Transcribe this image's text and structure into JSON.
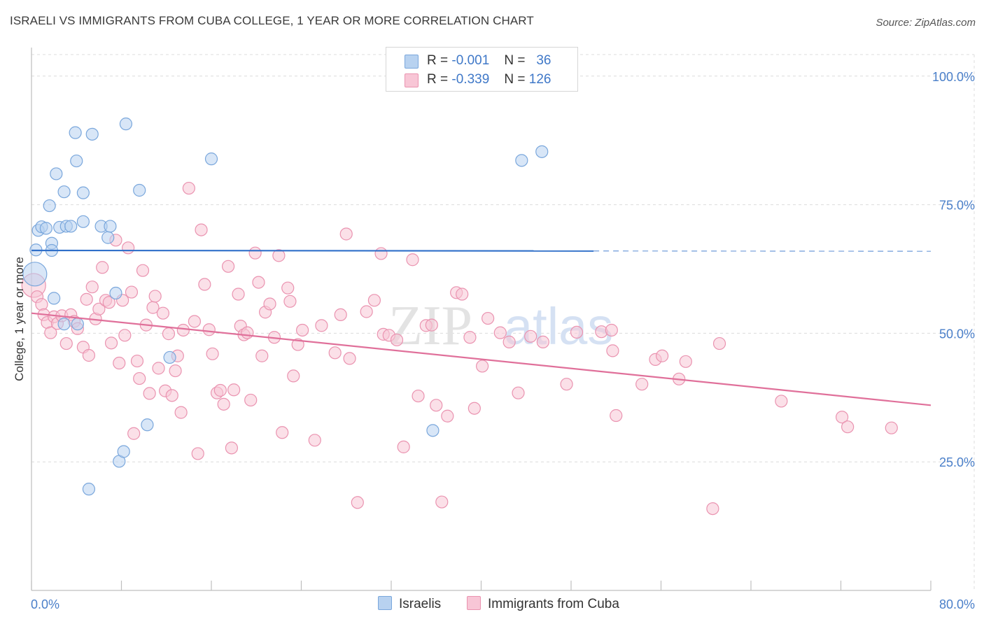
{
  "title": "ISRAELI VS IMMIGRANTS FROM CUBA COLLEGE, 1 YEAR OR MORE CORRELATION CHART",
  "source": "Source: ZipAtlas.com",
  "watermark": {
    "zip": "ZIP",
    "atlas": "atlas"
  },
  "legend": {
    "r_label": "R =",
    "n_label": "N =",
    "rows": [
      {
        "r": "-0.001",
        "n": "36",
        "series": "Israelis"
      },
      {
        "r": "-0.339",
        "n": "126",
        "series": "Immigrants from Cuba"
      }
    ]
  },
  "bottom_legend": [
    "Israelis",
    "Immigrants from Cuba"
  ],
  "colors": {
    "blue_fill": "#b8d2f0",
    "blue_stroke": "#7aa7dc",
    "blue_line": "#2f6fc9",
    "pink_fill": "#f8c6d6",
    "pink_stroke": "#ea93b0",
    "pink_line": "#e0709a",
    "axis_text": "#4a7fc9",
    "grid": "#dcdcdc"
  },
  "chart_data": {
    "type": "scatter",
    "xlabel": "",
    "ylabel": "College, 1 year or more",
    "xlim": [
      0,
      80
    ],
    "ylim": [
      0,
      105
    ],
    "x_tick_labels": [
      "0.0%",
      "80.0%"
    ],
    "y_ticks": [
      25,
      50,
      75,
      100
    ],
    "y_tick_labels": [
      "25.0%",
      "50.0%",
      "75.0%",
      "100.0%"
    ],
    "series": [
      {
        "name": "Israelis",
        "color": "blue",
        "trend": {
          "x": [
            0,
            50
          ],
          "y": [
            66.1,
            66.0
          ],
          "dashed_to": 80
        },
        "points": [
          [
            0.3,
            61.5,
            "big"
          ],
          [
            0.4,
            66.2
          ],
          [
            0.6,
            70.0
          ],
          [
            0.9,
            70.7
          ],
          [
            1.3,
            70.4
          ],
          [
            1.6,
            74.8
          ],
          [
            1.8,
            67.5
          ],
          [
            2.0,
            56.8
          ],
          [
            2.2,
            81.0
          ],
          [
            2.5,
            70.6
          ],
          [
            2.9,
            77.5
          ],
          [
            3.1,
            70.8
          ],
          [
            3.5,
            70.8
          ],
          [
            3.9,
            89.0
          ],
          [
            4.0,
            83.5
          ],
          [
            4.6,
            71.7
          ],
          [
            4.6,
            77.3
          ],
          [
            5.4,
            88.7
          ],
          [
            6.2,
            70.8
          ],
          [
            6.8,
            68.6
          ],
          [
            7.0,
            70.8
          ],
          [
            7.5,
            57.8
          ],
          [
            7.8,
            25.1
          ],
          [
            8.2,
            27.0
          ],
          [
            8.4,
            90.7
          ],
          [
            9.6,
            77.8
          ],
          [
            10.3,
            32.2
          ],
          [
            12.3,
            45.3
          ],
          [
            16.0,
            83.9
          ],
          [
            35.7,
            31.1
          ],
          [
            43.6,
            83.6
          ],
          [
            45.4,
            85.3
          ],
          [
            4.1,
            51.8
          ],
          [
            5.1,
            19.7
          ],
          [
            2.9,
            51.8
          ],
          [
            1.8,
            66.1
          ]
        ]
      },
      {
        "name": "Immigrants from Cuba",
        "color": "pink",
        "trend": {
          "x": [
            0,
            80
          ],
          "y": [
            53.9,
            36.0
          ]
        },
        "points": [
          [
            0.2,
            59.3,
            "big"
          ],
          [
            0.5,
            57.1
          ],
          [
            0.9,
            55.6
          ],
          [
            1.1,
            53.6
          ],
          [
            1.4,
            52.1
          ],
          [
            1.7,
            50.1
          ],
          [
            2.0,
            53.2
          ],
          [
            2.3,
            51.9
          ],
          [
            2.7,
            53.4
          ],
          [
            3.1,
            48.0
          ],
          [
            3.5,
            53.6
          ],
          [
            3.8,
            52.3
          ],
          [
            4.1,
            50.9
          ],
          [
            4.6,
            47.3
          ],
          [
            4.9,
            56.6
          ],
          [
            5.1,
            45.7
          ],
          [
            5.4,
            59.0
          ],
          [
            5.7,
            52.8
          ],
          [
            6.0,
            54.7
          ],
          [
            6.3,
            62.8
          ],
          [
            6.6,
            56.4
          ],
          [
            6.9,
            56.0
          ],
          [
            7.1,
            48.1
          ],
          [
            7.5,
            68.1
          ],
          [
            7.8,
            44.2
          ],
          [
            8.1,
            56.4
          ],
          [
            8.3,
            49.6
          ],
          [
            8.6,
            66.6
          ],
          [
            8.9,
            58.0
          ],
          [
            9.1,
            30.5
          ],
          [
            9.4,
            44.6
          ],
          [
            9.6,
            41.2
          ],
          [
            9.9,
            62.2
          ],
          [
            10.2,
            51.6
          ],
          [
            10.5,
            38.3
          ],
          [
            10.8,
            55.0
          ],
          [
            11.0,
            57.2
          ],
          [
            11.3,
            43.2
          ],
          [
            11.7,
            53.9
          ],
          [
            11.9,
            38.8
          ],
          [
            12.2,
            49.9
          ],
          [
            12.5,
            37.9
          ],
          [
            12.8,
            42.7
          ],
          [
            13.0,
            45.6
          ],
          [
            13.3,
            34.6
          ],
          [
            13.5,
            50.6
          ],
          [
            14.0,
            78.2
          ],
          [
            14.5,
            52.3
          ],
          [
            14.8,
            26.6
          ],
          [
            15.1,
            70.1
          ],
          [
            15.4,
            59.5
          ],
          [
            15.8,
            50.7
          ],
          [
            16.1,
            46.0
          ],
          [
            16.5,
            38.4
          ],
          [
            16.8,
            38.9
          ],
          [
            17.1,
            36.2
          ],
          [
            17.5,
            63.0
          ],
          [
            17.8,
            27.7
          ],
          [
            18.0,
            39.0
          ],
          [
            18.4,
            57.6
          ],
          [
            18.6,
            51.4
          ],
          [
            18.9,
            49.7
          ],
          [
            19.2,
            50.1
          ],
          [
            19.5,
            37.0
          ],
          [
            19.9,
            65.6
          ],
          [
            20.2,
            59.9
          ],
          [
            20.5,
            45.6
          ],
          [
            20.8,
            54.1
          ],
          [
            21.2,
            55.7
          ],
          [
            21.6,
            49.2
          ],
          [
            22.0,
            65.1
          ],
          [
            22.3,
            30.7
          ],
          [
            22.8,
            58.8
          ],
          [
            23.0,
            56.2
          ],
          [
            23.3,
            41.7
          ],
          [
            23.7,
            47.8
          ],
          [
            24.1,
            50.6
          ],
          [
            25.2,
            29.2
          ],
          [
            25.8,
            51.5
          ],
          [
            27.0,
            46.2
          ],
          [
            27.5,
            53.6
          ],
          [
            28.0,
            69.3
          ],
          [
            28.3,
            45.1
          ],
          [
            29.8,
            54.2
          ],
          [
            30.5,
            56.4
          ],
          [
            31.1,
            65.5
          ],
          [
            31.3,
            49.8
          ],
          [
            31.8,
            49.6
          ],
          [
            32.5,
            48.7
          ],
          [
            33.1,
            27.9
          ],
          [
            33.9,
            64.3
          ],
          [
            34.4,
            37.8
          ],
          [
            35.1,
            51.5
          ],
          [
            35.6,
            51.6
          ],
          [
            36.0,
            36.0
          ],
          [
            36.5,
            17.2
          ],
          [
            37.0,
            33.9
          ],
          [
            37.8,
            57.9
          ],
          [
            38.3,
            57.6
          ],
          [
            39.0,
            49.2
          ],
          [
            39.4,
            35.4
          ],
          [
            40.1,
            43.6
          ],
          [
            40.6,
            52.9
          ],
          [
            41.7,
            50.1
          ],
          [
            42.5,
            48.3
          ],
          [
            43.3,
            38.4
          ],
          [
            44.4,
            49.4
          ],
          [
            45.5,
            48.3
          ],
          [
            47.6,
            40.1
          ],
          [
            48.5,
            50.2
          ],
          [
            50.7,
            50.3
          ],
          [
            51.7,
            46.6
          ],
          [
            52.0,
            34.0
          ],
          [
            54.3,
            40.1
          ],
          [
            55.5,
            44.9
          ],
          [
            56.1,
            45.6
          ],
          [
            57.6,
            41.1
          ],
          [
            58.2,
            44.5
          ],
          [
            60.6,
            15.9
          ],
          [
            61.2,
            48.0
          ],
          [
            66.7,
            36.8
          ],
          [
            72.1,
            33.7
          ],
          [
            72.6,
            31.8
          ],
          [
            76.5,
            31.6
          ],
          [
            51.6,
            50.6
          ],
          [
            29.0,
            17.1
          ]
        ]
      }
    ]
  }
}
